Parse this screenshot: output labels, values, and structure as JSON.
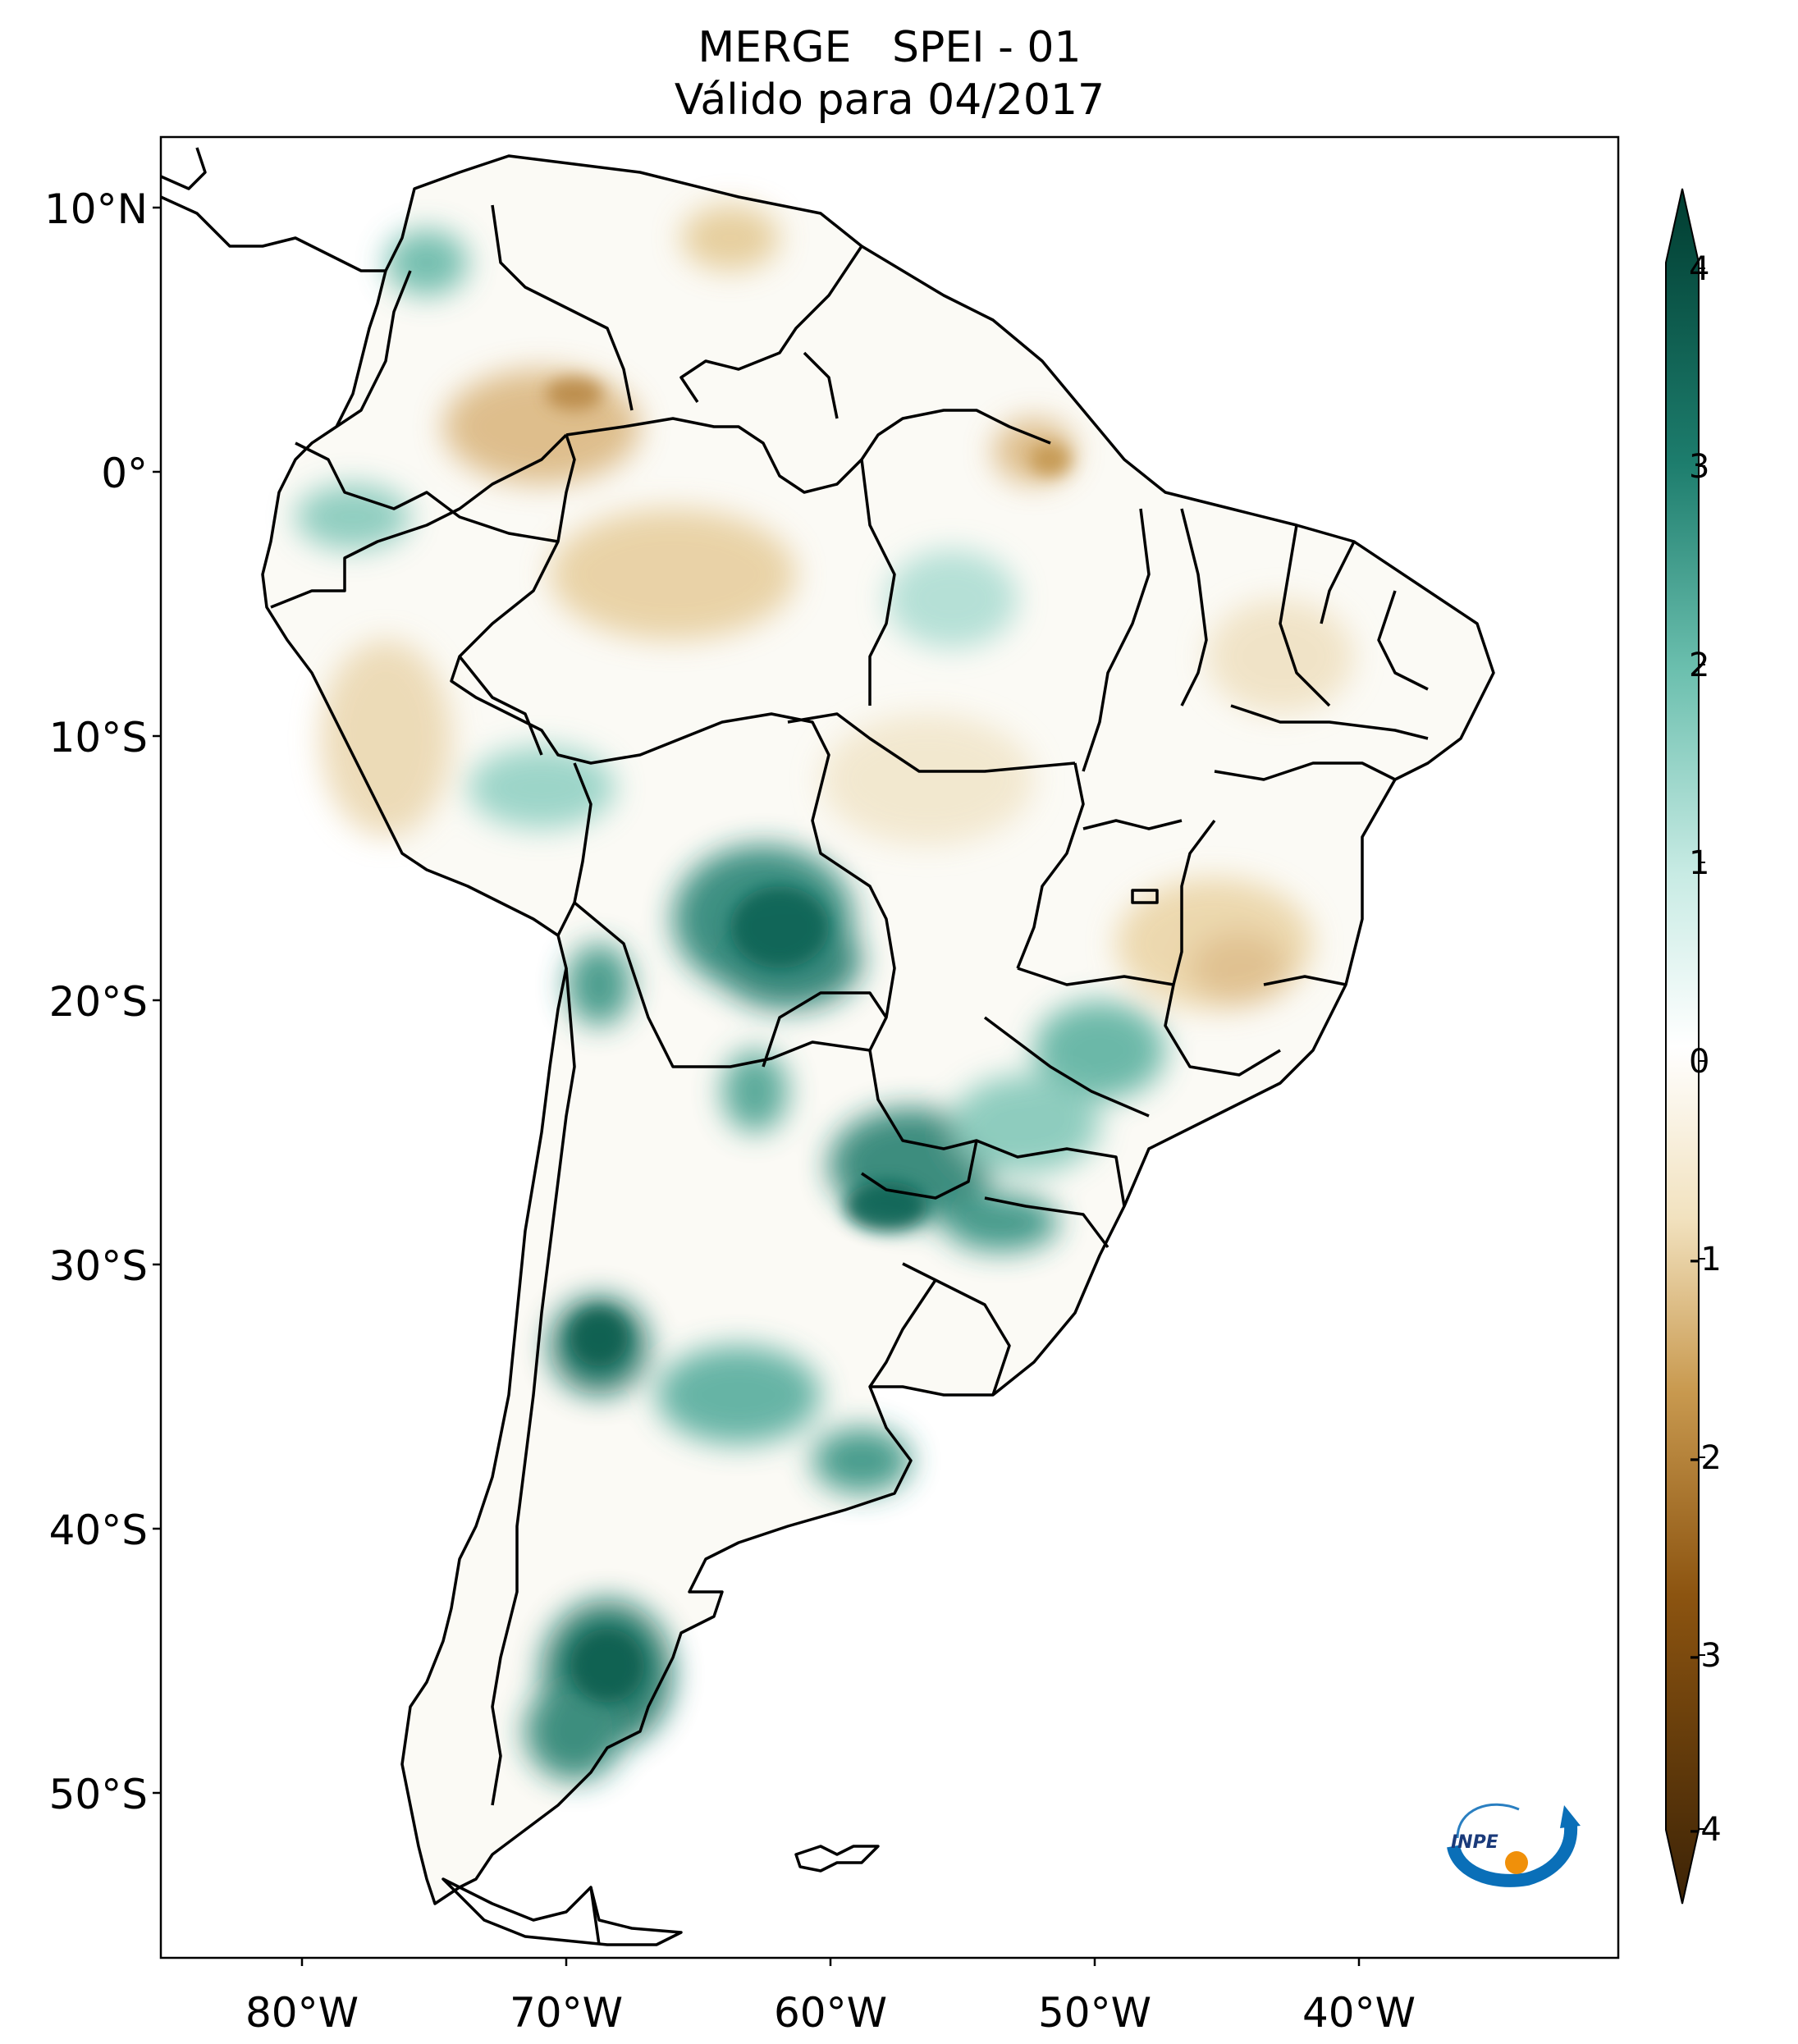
{
  "title": {
    "line1": "MERGE   SPEI - 01",
    "line2": "Válido para 04/2017"
  },
  "lat_labels": [
    "10°N",
    "0°",
    "10°S",
    "20°S",
    "30°S",
    "40°S",
    "50°S"
  ],
  "lon_labels": [
    "80°W",
    "70°W",
    "60°W",
    "50°W",
    "40°W"
  ],
  "colorbar": {
    "ticks": [
      "4",
      "3",
      "2",
      "1",
      "0",
      "-1",
      "-2",
      "-3",
      "-4"
    ],
    "range": [
      -4,
      4
    ],
    "colors": {
      "min": "#3c2306",
      "dry_mid": "#b97a2f",
      "dry_light": "#f2e2bf",
      "zero": "#ffffff",
      "wet_light": "#c8ebe4",
      "wet_mid": "#3aa390",
      "max": "#003c30"
    }
  },
  "logo": {
    "text": "INPE"
  }
}
